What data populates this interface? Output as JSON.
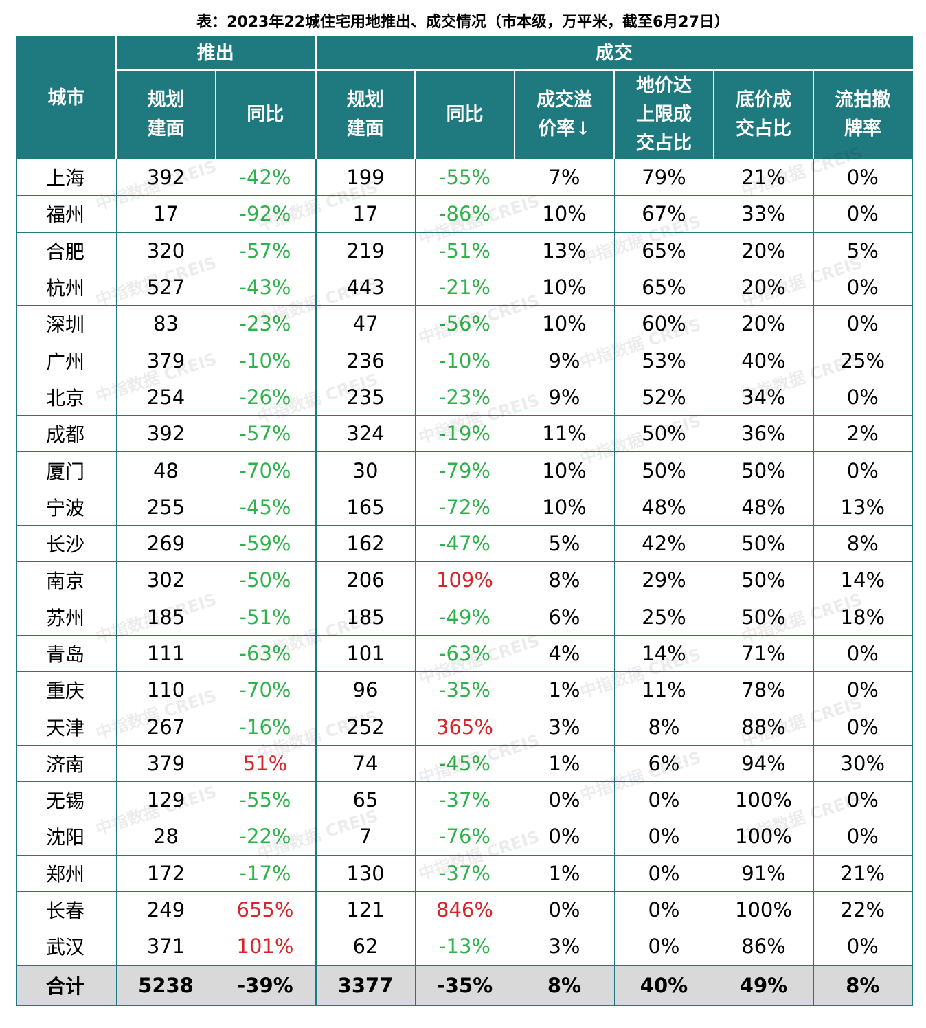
{
  "title": "表：2023年22城住宅用地推出、成交情况（市本级，万平米，截至6月27日）",
  "header": {
    "city": "城市",
    "group_launch": "推出",
    "group_deal": "成交",
    "launch_area": "规划\n建面",
    "launch_yoy": "同比",
    "deal_area": "规划\n建面",
    "deal_yoy": "同比",
    "premium": "成交溢\n价率↓",
    "cap_ratio": "地价达\n上限成\n交占比",
    "base_ratio": "底价成\n交占比",
    "fail_rate": "流拍撤\n牌率"
  },
  "rows": [
    {
      "city": "上海",
      "launch_area": "392",
      "launch_yoy": "-42%",
      "deal_area": "199",
      "deal_yoy": "-55%",
      "premium": "7%",
      "cap_ratio": "79%",
      "base_ratio": "21%",
      "fail_rate": "0%"
    },
    {
      "city": "福州",
      "launch_area": "17",
      "launch_yoy": "-92%",
      "deal_area": "17",
      "deal_yoy": "-86%",
      "premium": "10%",
      "cap_ratio": "67%",
      "base_ratio": "33%",
      "fail_rate": "0%"
    },
    {
      "city": "合肥",
      "launch_area": "320",
      "launch_yoy": "-57%",
      "deal_area": "219",
      "deal_yoy": "-51%",
      "premium": "13%",
      "cap_ratio": "65%",
      "base_ratio": "20%",
      "fail_rate": "5%"
    },
    {
      "city": "杭州",
      "launch_area": "527",
      "launch_yoy": "-43%",
      "deal_area": "443",
      "deal_yoy": "-21%",
      "premium": "10%",
      "cap_ratio": "65%",
      "base_ratio": "20%",
      "fail_rate": "0%"
    },
    {
      "city": "深圳",
      "launch_area": "83",
      "launch_yoy": "-23%",
      "deal_area": "47",
      "deal_yoy": "-56%",
      "premium": "10%",
      "cap_ratio": "60%",
      "base_ratio": "20%",
      "fail_rate": "0%"
    },
    {
      "city": "广州",
      "launch_area": "379",
      "launch_yoy": "-10%",
      "deal_area": "236",
      "deal_yoy": "-10%",
      "premium": "9%",
      "cap_ratio": "53%",
      "base_ratio": "40%",
      "fail_rate": "25%"
    },
    {
      "city": "北京",
      "launch_area": "254",
      "launch_yoy": "-26%",
      "deal_area": "235",
      "deal_yoy": "-23%",
      "premium": "9%",
      "cap_ratio": "52%",
      "base_ratio": "34%",
      "fail_rate": "0%"
    },
    {
      "city": "成都",
      "launch_area": "392",
      "launch_yoy": "-57%",
      "deal_area": "324",
      "deal_yoy": "-19%",
      "premium": "11%",
      "cap_ratio": "50%",
      "base_ratio": "36%",
      "fail_rate": "2%"
    },
    {
      "city": "厦门",
      "launch_area": "48",
      "launch_yoy": "-70%",
      "deal_area": "30",
      "deal_yoy": "-79%",
      "premium": "10%",
      "cap_ratio": "50%",
      "base_ratio": "50%",
      "fail_rate": "0%"
    },
    {
      "city": "宁波",
      "launch_area": "255",
      "launch_yoy": "-45%",
      "deal_area": "165",
      "deal_yoy": "-72%",
      "premium": "10%",
      "cap_ratio": "48%",
      "base_ratio": "48%",
      "fail_rate": "13%"
    },
    {
      "city": "长沙",
      "launch_area": "269",
      "launch_yoy": "-59%",
      "deal_area": "162",
      "deal_yoy": "-47%",
      "premium": "5%",
      "cap_ratio": "42%",
      "base_ratio": "50%",
      "fail_rate": "8%"
    },
    {
      "city": "南京",
      "launch_area": "302",
      "launch_yoy": "-50%",
      "deal_area": "206",
      "deal_yoy": "109%",
      "premium": "8%",
      "cap_ratio": "29%",
      "base_ratio": "50%",
      "fail_rate": "14%"
    },
    {
      "city": "苏州",
      "launch_area": "185",
      "launch_yoy": "-51%",
      "deal_area": "185",
      "deal_yoy": "-49%",
      "premium": "6%",
      "cap_ratio": "25%",
      "base_ratio": "50%",
      "fail_rate": "18%"
    },
    {
      "city": "青岛",
      "launch_area": "111",
      "launch_yoy": "-63%",
      "deal_area": "101",
      "deal_yoy": "-63%",
      "premium": "4%",
      "cap_ratio": "14%",
      "base_ratio": "71%",
      "fail_rate": "0%"
    },
    {
      "city": "重庆",
      "launch_area": "110",
      "launch_yoy": "-70%",
      "deal_area": "96",
      "deal_yoy": "-35%",
      "premium": "1%",
      "cap_ratio": "11%",
      "base_ratio": "78%",
      "fail_rate": "0%"
    },
    {
      "city": "天津",
      "launch_area": "267",
      "launch_yoy": "-16%",
      "deal_area": "252",
      "deal_yoy": "365%",
      "premium": "3%",
      "cap_ratio": "8%",
      "base_ratio": "88%",
      "fail_rate": "0%"
    },
    {
      "city": "济南",
      "launch_area": "379",
      "launch_yoy": "51%",
      "deal_area": "74",
      "deal_yoy": "-45%",
      "premium": "1%",
      "cap_ratio": "6%",
      "base_ratio": "94%",
      "fail_rate": "30%"
    },
    {
      "city": "无锡",
      "launch_area": "129",
      "launch_yoy": "-55%",
      "deal_area": "65",
      "deal_yoy": "-37%",
      "premium": "0%",
      "cap_ratio": "0%",
      "base_ratio": "100%",
      "fail_rate": "0%"
    },
    {
      "city": "沈阳",
      "launch_area": "28",
      "launch_yoy": "-22%",
      "deal_area": "7",
      "deal_yoy": "-76%",
      "premium": "0%",
      "cap_ratio": "0%",
      "base_ratio": "100%",
      "fail_rate": "0%"
    },
    {
      "city": "郑州",
      "launch_area": "172",
      "launch_yoy": "-17%",
      "deal_area": "130",
      "deal_yoy": "-37%",
      "premium": "1%",
      "cap_ratio": "0%",
      "base_ratio": "91%",
      "fail_rate": "21%"
    },
    {
      "city": "长春",
      "launch_area": "249",
      "launch_yoy": "655%",
      "deal_area": "121",
      "deal_yoy": "846%",
      "premium": "0%",
      "cap_ratio": "0%",
      "base_ratio": "100%",
      "fail_rate": "22%"
    },
    {
      "city": "武汉",
      "launch_area": "371",
      "launch_yoy": "101%",
      "deal_area": "62",
      "deal_yoy": "-13%",
      "premium": "3%",
      "cap_ratio": "0%",
      "base_ratio": "86%",
      "fail_rate": "0%"
    }
  ],
  "total": {
    "city": "合计",
    "launch_area": "5238",
    "launch_yoy": "-39%",
    "deal_area": "3377",
    "deal_yoy": "-35%",
    "premium": "8%",
    "cap_ratio": "40%",
    "base_ratio": "49%",
    "fail_rate": "8%"
  },
  "watermark": "中指数据 CREIS",
  "colors": {
    "header_bg": "#1f7a80",
    "negative": "#2eb24a",
    "positive": "#d7262b",
    "total_bg": "#d9d9d9"
  }
}
